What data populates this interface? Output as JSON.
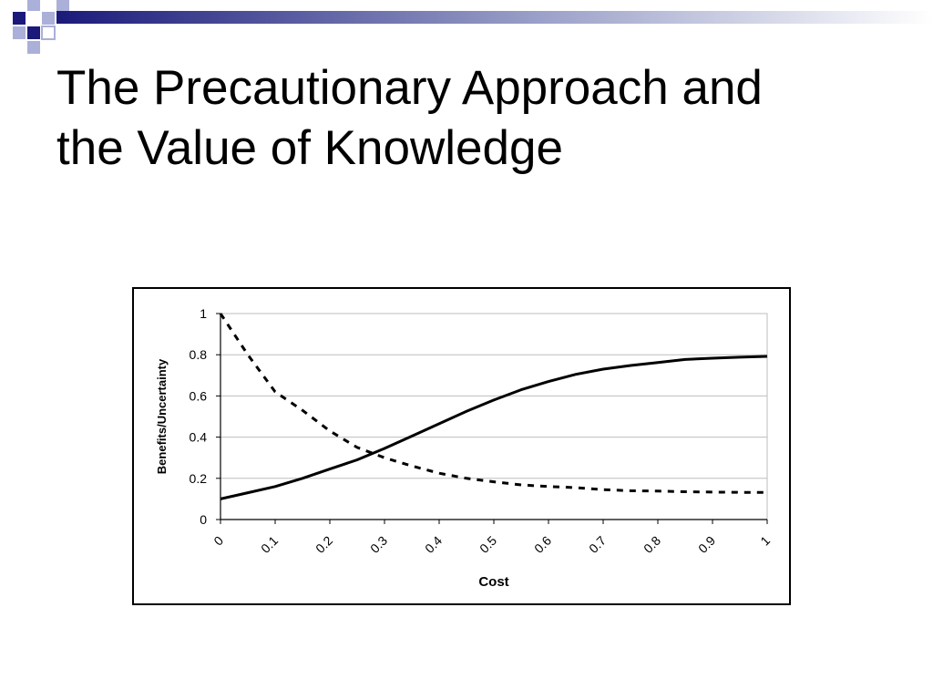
{
  "slide": {
    "title_line1": "The Precautionary Approach and",
    "title_line2": "the Value of Knowledge",
    "accent_color": "#1a1a7a",
    "light_accent_color": "#aab0d8"
  },
  "chart_data": {
    "type": "line",
    "xlabel": "Cost",
    "ylabel": "Benefits/Uncertainty",
    "xlim": [
      0,
      1
    ],
    "ylim": [
      0,
      1
    ],
    "x_ticks": [
      "0",
      "0.1",
      "0.2",
      "0.3",
      "0.4",
      "0.5",
      "0.6",
      "0.7",
      "0.8",
      "0.9",
      "1"
    ],
    "y_ticks": [
      "0",
      "0.2",
      "0.4",
      "0.6",
      "0.8",
      "1"
    ],
    "grid": "horizontal",
    "legend": "none",
    "series": [
      {
        "style": "solid",
        "x": [
          0,
          0.05,
          0.1,
          0.15,
          0.2,
          0.25,
          0.3,
          0.35,
          0.4,
          0.45,
          0.5,
          0.55,
          0.6,
          0.65,
          0.7,
          0.75,
          0.8,
          0.85,
          0.9,
          0.95,
          1
        ],
        "y": [
          0.1,
          0.13,
          0.16,
          0.2,
          0.245,
          0.29,
          0.345,
          0.405,
          0.465,
          0.525,
          0.58,
          0.63,
          0.67,
          0.705,
          0.73,
          0.748,
          0.762,
          0.777,
          0.783,
          0.788,
          0.792
        ]
      },
      {
        "style": "dashed",
        "x": [
          0,
          0.05,
          0.1,
          0.15,
          0.2,
          0.25,
          0.3,
          0.35,
          0.4,
          0.45,
          0.5,
          0.55,
          0.6,
          0.65,
          0.7,
          0.75,
          0.8,
          0.85,
          0.9,
          0.95,
          1
        ],
        "y": [
          1.0,
          0.8,
          0.62,
          0.53,
          0.43,
          0.35,
          0.3,
          0.26,
          0.225,
          0.2,
          0.183,
          0.168,
          0.16,
          0.155,
          0.145,
          0.14,
          0.138,
          0.135,
          0.133,
          0.132,
          0.132
        ]
      }
    ]
  }
}
